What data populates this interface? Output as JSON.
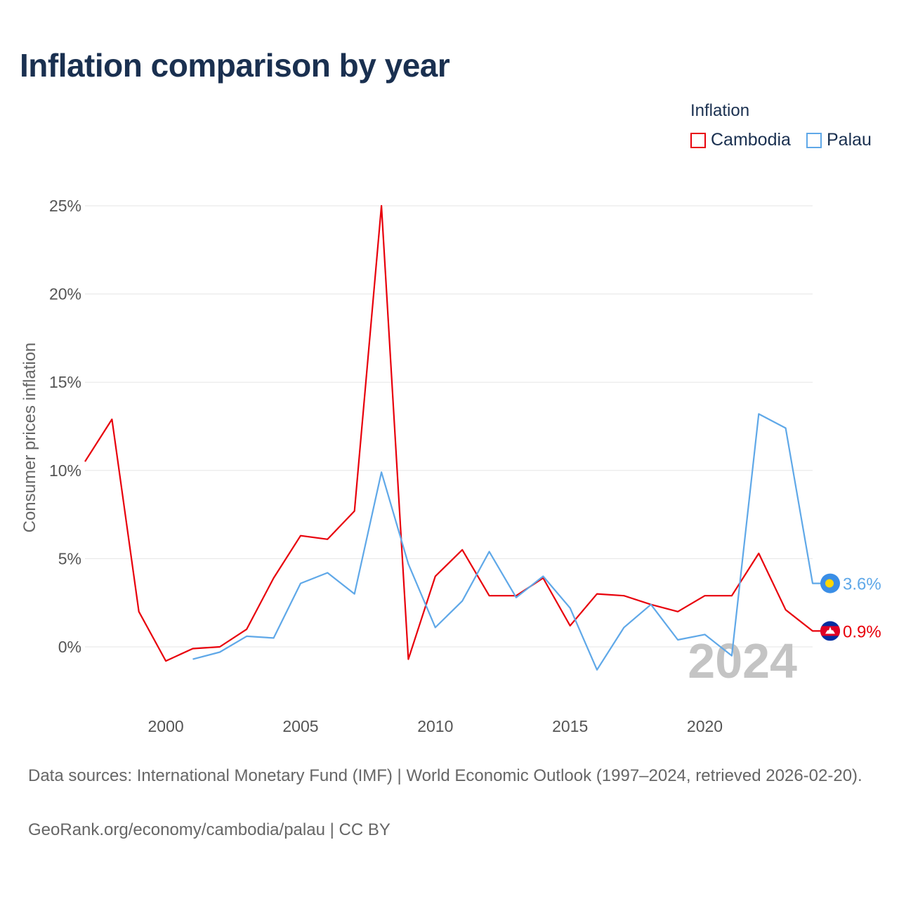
{
  "title": "Inflation comparison by year",
  "legend": {
    "title": "Inflation",
    "items": [
      {
        "label": "Cambodia",
        "color": "#e8000b"
      },
      {
        "label": "Palau",
        "color": "#5fa8e8"
      }
    ]
  },
  "footer": {
    "sources": "Data sources: International Monetary Fund (IMF) | World Economic Outlook (1997–2024, retrieved 2026-02-20).",
    "credit": "GeoRank.org/economy/cambodia/palau | CC BY"
  },
  "year_watermark": "2024",
  "chart_data": {
    "type": "line",
    "title": "Inflation comparison by year",
    "ylabel": "Consumer prices inflation",
    "xlabel": "",
    "xlim": [
      1997,
      2024
    ],
    "ylim": [
      -3.5,
      25.5
    ],
    "x_ticks": [
      2000,
      2005,
      2010,
      2015,
      2020
    ],
    "y_ticks": [
      0,
      5,
      10,
      15,
      20,
      25
    ],
    "y_tick_labels": [
      "0%",
      "5%",
      "10%",
      "15%",
      "20%",
      "25%"
    ],
    "series": [
      {
        "name": "Cambodia",
        "color": "#e8000b",
        "end_label": "0.9%",
        "x": [
          1997,
          1998,
          1999,
          2000,
          2001,
          2002,
          2003,
          2004,
          2005,
          2006,
          2007,
          2008,
          2009,
          2010,
          2011,
          2012,
          2013,
          2014,
          2015,
          2016,
          2017,
          2018,
          2019,
          2020,
          2021,
          2022,
          2023,
          2024
        ],
        "values": [
          10.5,
          12.9,
          2.0,
          -0.8,
          -0.1,
          0.0,
          1.0,
          3.9,
          6.3,
          6.1,
          7.7,
          25.0,
          -0.7,
          4.0,
          5.5,
          2.9,
          2.9,
          3.9,
          1.2,
          3.0,
          2.9,
          2.4,
          2.0,
          2.9,
          2.9,
          5.3,
          2.1,
          0.9
        ]
      },
      {
        "name": "Palau",
        "color": "#5fa8e8",
        "end_label": "3.6%",
        "x": [
          2001,
          2002,
          2003,
          2004,
          2005,
          2006,
          2007,
          2008,
          2009,
          2010,
          2011,
          2012,
          2013,
          2014,
          2015,
          2016,
          2017,
          2018,
          2019,
          2020,
          2021,
          2022,
          2023,
          2024
        ],
        "values": [
          -0.7,
          -0.3,
          0.6,
          0.5,
          3.6,
          4.2,
          3.0,
          9.9,
          4.7,
          1.1,
          2.6,
          5.4,
          2.8,
          4.0,
          2.2,
          -1.3,
          1.1,
          2.4,
          0.4,
          0.7,
          -0.5,
          13.2,
          12.4,
          3.6
        ]
      }
    ]
  }
}
